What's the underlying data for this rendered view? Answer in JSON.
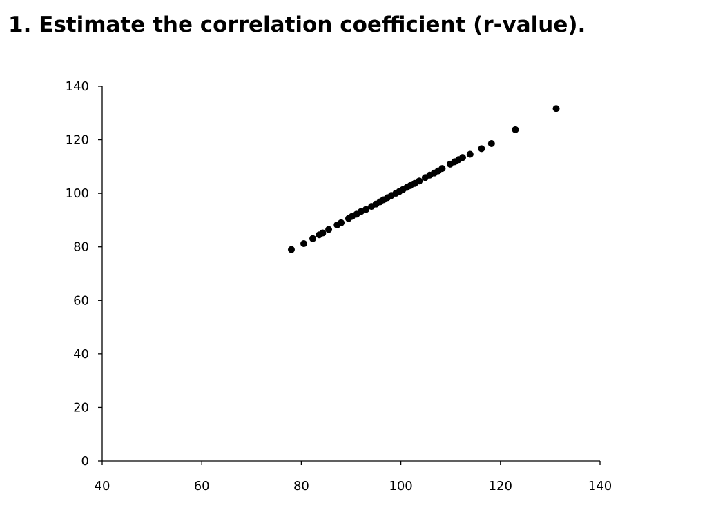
{
  "slide": {
    "title": "1. Estimate the correlation coefficient (r-value)."
  },
  "chart_data": {
    "type": "scatter",
    "title": "",
    "xlabel": "",
    "ylabel": "",
    "xlim": [
      40,
      140
    ],
    "ylim": [
      0,
      140
    ],
    "x_ticks": [
      40,
      60,
      80,
      100,
      120,
      140
    ],
    "y_ticks": [
      0,
      20,
      40,
      60,
      80,
      100,
      120,
      140
    ],
    "x_tick_labels": [
      "40",
      "60",
      "80",
      "100",
      "120",
      "140"
    ],
    "y_tick_labels": [
      "0",
      "20",
      "40",
      "60",
      "80",
      "100",
      "120",
      "140"
    ],
    "grid": false,
    "legend": "none",
    "marker_color": "#000000",
    "x": [
      78.0,
      80.5,
      82.3,
      83.6,
      84.3,
      85.5,
      87.2,
      88.0,
      89.5,
      90.2,
      91.1,
      92.0,
      93.0,
      94.1,
      95.0,
      95.8,
      96.5,
      97.3,
      98.1,
      99.0,
      99.7,
      100.4,
      101.2,
      101.9,
      102.8,
      103.7,
      104.9,
      105.8,
      106.7,
      107.5,
      108.3,
      109.9,
      110.8,
      111.6,
      112.4,
      113.9,
      116.2,
      118.2,
      123.0,
      131.2
    ],
    "y": [
      79.0,
      81.2,
      83.1,
      84.5,
      85.2,
      86.5,
      88.2,
      89.0,
      90.6,
      91.4,
      92.2,
      93.2,
      94.0,
      95.1,
      96.0,
      96.8,
      97.6,
      98.4,
      99.2,
      100.0,
      100.7,
      101.4,
      102.2,
      102.9,
      103.7,
      104.6,
      105.9,
      106.8,
      107.6,
      108.4,
      109.3,
      110.9,
      111.8,
      112.6,
      113.4,
      114.6,
      116.7,
      118.6,
      123.8,
      131.7
    ]
  }
}
